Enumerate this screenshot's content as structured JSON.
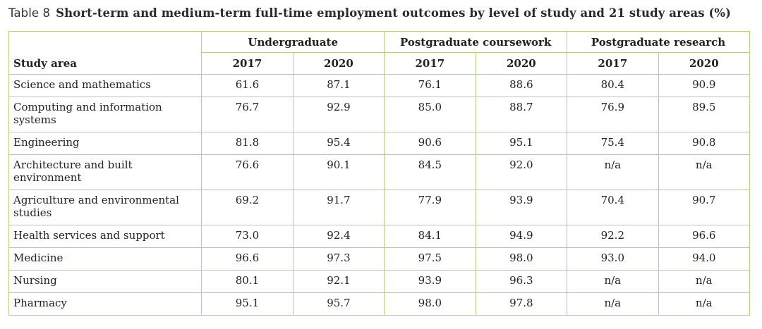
{
  "caption": {
    "label": "Table 8",
    "title": "Short-term and medium-term full-time employment outcomes by level of study and 21 study areas (%)"
  },
  "table": {
    "row_header": "Study area",
    "groups": [
      "Undergraduate",
      "Postgraduate coursework",
      "Postgraduate research"
    ],
    "years": [
      "2017",
      "2020",
      "2017",
      "2020",
      "2017",
      "2020"
    ],
    "rows": [
      {
        "area": "Science and mathematics",
        "values": [
          "61.6",
          "87.1",
          "76.1",
          "88.6",
          "80.4",
          "90.9"
        ]
      },
      {
        "area": "Computing and information systems",
        "values": [
          "76.7",
          "92.9",
          "85.0",
          "88.7",
          "76.9",
          "89.5"
        ]
      },
      {
        "area": "Engineering",
        "values": [
          "81.8",
          "95.4",
          "90.6",
          "95.1",
          "75.4",
          "90.8"
        ]
      },
      {
        "area": "Architecture and built environment",
        "values": [
          "76.6",
          "90.1",
          "84.5",
          "92.0",
          "n/a",
          "n/a"
        ]
      },
      {
        "area": "Agriculture and environmental studies",
        "values": [
          "69.2",
          "91.7",
          "77.9",
          "93.9",
          "70.4",
          "90.7"
        ]
      },
      {
        "area": "Health services and support",
        "values": [
          "73.0",
          "92.4",
          "84.1",
          "94.9",
          "92.2",
          "96.6"
        ]
      },
      {
        "area": "Medicine",
        "values": [
          "96.6",
          "97.3",
          "97.5",
          "98.0",
          "93.0",
          "94.0"
        ]
      },
      {
        "area": "Nursing",
        "values": [
          "80.1",
          "92.1",
          "93.9",
          "96.3",
          "n/a",
          "n/a"
        ]
      },
      {
        "area": "Pharmacy",
        "values": [
          "95.1",
          "95.7",
          "98.0",
          "97.8",
          "n/a",
          "n/a"
        ]
      }
    ]
  },
  "colors": {
    "border": "#b7cf7e",
    "text": "#222222"
  }
}
